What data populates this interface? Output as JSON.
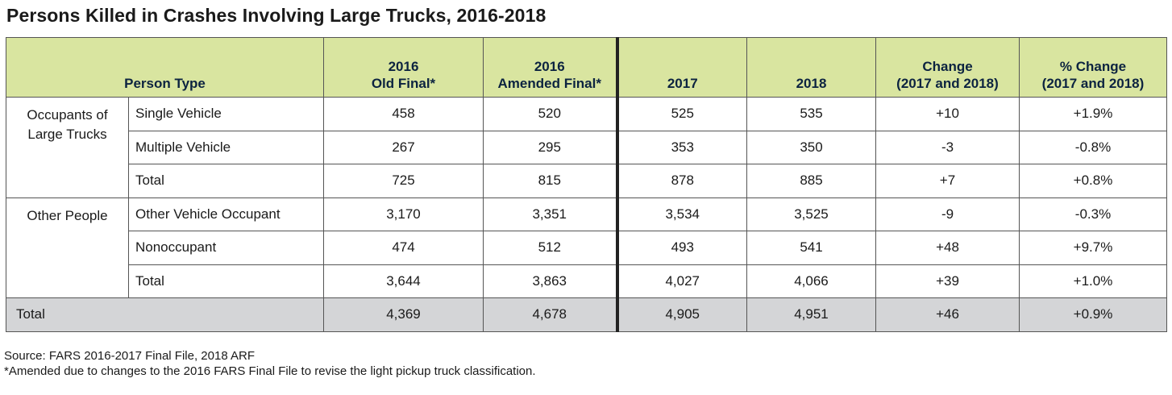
{
  "title": "Persons Killed in Crashes Involving Large Trucks, 2016-2018",
  "headers": {
    "person_type": "Person Type",
    "col1_line1": "2016",
    "col1_line2": "Old Final*",
    "col2_line1": "2016",
    "col2_line2": "Amended Final*",
    "col3": "2017",
    "col4": "2018",
    "col5_line1": "Change",
    "col5_line2": "(2017 and 2018)",
    "col6_line1": "% Change",
    "col6_line2": "(2017 and 2018)"
  },
  "groups": [
    {
      "label_line1": "Occupants of",
      "label_line2": "Large Trucks",
      "rows": [
        {
          "type": "Single Vehicle",
          "old_final_2016": "458",
          "amended_final_2016": "520",
          "y2017": "525",
          "y2018": "535",
          "change": "+10",
          "pct_change": "+1.9%"
        },
        {
          "type": "Multiple Vehicle",
          "old_final_2016": "267",
          "amended_final_2016": "295",
          "y2017": "353",
          "y2018": "350",
          "change": "-3",
          "pct_change": "-0.8%"
        },
        {
          "type": "Total",
          "old_final_2016": "725",
          "amended_final_2016": "815",
          "y2017": "878",
          "y2018": "885",
          "change": "+7",
          "pct_change": "+0.8%"
        }
      ]
    },
    {
      "label_line1": "Other People",
      "label_line2": "",
      "rows": [
        {
          "type": "Other Vehicle Occupant",
          "old_final_2016": "3,170",
          "amended_final_2016": "3,351",
          "y2017": "3,534",
          "y2018": "3,525",
          "change": "-9",
          "pct_change": "-0.3%"
        },
        {
          "type": "Nonoccupant",
          "old_final_2016": "474",
          "amended_final_2016": "512",
          "y2017": "493",
          "y2018": "541",
          "change": "+48",
          "pct_change": "+9.7%"
        },
        {
          "type": "Total",
          "old_final_2016": "3,644",
          "amended_final_2016": "3,863",
          "y2017": "4,027",
          "y2018": "4,066",
          "change": "+39",
          "pct_change": "+1.0%"
        }
      ]
    }
  ],
  "grand_total": {
    "label": "Total",
    "old_final_2016": "4,369",
    "amended_final_2016": "4,678",
    "y2017": "4,905",
    "y2018": "4,951",
    "change": "+46",
    "pct_change": "+0.9%"
  },
  "footnotes": {
    "source": "Source: FARS 2016-2017 Final File, 2018 ARF",
    "note": "*Amended due to changes to the 2016 FARS Final File to revise the light pickup truck classification."
  },
  "colors": {
    "header_bg": "#d9e5a0",
    "header_text": "#0c2340",
    "total_bg": "#d4d5d7"
  }
}
